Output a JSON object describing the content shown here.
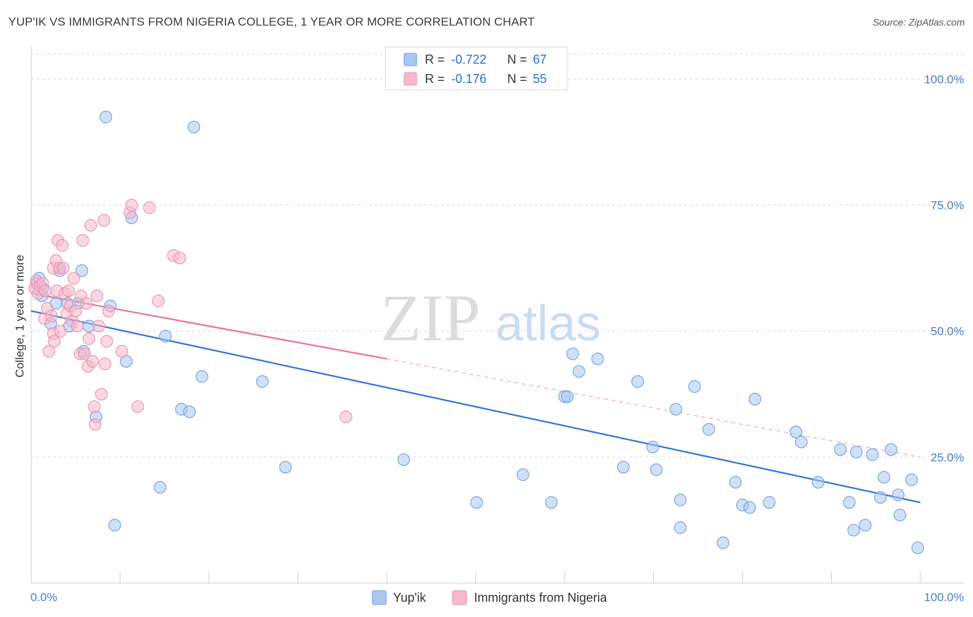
{
  "title": "YUP'IK VS IMMIGRANTS FROM NIGERIA COLLEGE, 1 YEAR OR MORE CORRELATION CHART",
  "source": "Source: ZipAtlas.com",
  "watermark": {
    "zip": "ZIP",
    "atlas": "atlas"
  },
  "colors": {
    "blue_fill": "#a9c8f0",
    "blue_stroke": "#6f9fe0",
    "blue_line": "#2f74d0",
    "pink_fill": "#f6b8cb",
    "pink_stroke": "#ec8fae",
    "pink_line": "#e8709a",
    "grid": "#d9d9d9",
    "axis_text": "#4a7cc4"
  },
  "legend": {
    "r_label": "R =",
    "n_label": "N =",
    "series": [
      {
        "name": "Yup'ik",
        "r": "-0.722",
        "n": "67"
      },
      {
        "name": "Immigrants from Nigeria",
        "r": "-0.176",
        "n": "55"
      }
    ]
  },
  "chart_data": {
    "type": "scatter",
    "title": "YUP'IK VS IMMIGRANTS FROM NIGERIA COLLEGE, 1 YEAR OR MORE CORRELATION CHART",
    "xlabel": "",
    "ylabel": "College, 1 year or more",
    "xlim": [
      0,
      100
    ],
    "ylim": [
      0,
      105
    ],
    "x_tick_labels": [
      "0.0%",
      "100.0%"
    ],
    "y_ticks": [
      25,
      50,
      75,
      100
    ],
    "y_tick_labels": [
      "25.0%",
      "50.0%",
      "75.0%",
      "100.0%"
    ],
    "grid": "horizontal dashed",
    "series": [
      {
        "name": "Yup'ik",
        "trend": {
          "x": [
            0,
            100
          ],
          "y": [
            54.0,
            16.0
          ],
          "solid_until": 100
        },
        "points": [
          [
            0.6,
            59.5
          ],
          [
            0.9,
            60.5
          ],
          [
            1.2,
            57.0
          ],
          [
            1.3,
            58.5
          ],
          [
            2.2,
            51.5
          ],
          [
            2.8,
            55.5
          ],
          [
            3.2,
            62.0
          ],
          [
            4.1,
            55.5
          ],
          [
            4.3,
            51.0
          ],
          [
            5.3,
            55.5
          ],
          [
            5.7,
            62.0
          ],
          [
            5.9,
            46.0
          ],
          [
            6.5,
            51.0
          ],
          [
            7.3,
            33.0
          ],
          [
            8.4,
            92.5
          ],
          [
            8.9,
            55.0
          ],
          [
            9.4,
            11.5
          ],
          [
            10.7,
            44.0
          ],
          [
            11.3,
            72.5
          ],
          [
            14.5,
            19.0
          ],
          [
            15.1,
            49.0
          ],
          [
            16.9,
            34.5
          ],
          [
            17.8,
            34.0
          ],
          [
            18.3,
            90.5
          ],
          [
            19.2,
            41.0
          ],
          [
            26.0,
            40.0
          ],
          [
            28.6,
            23.0
          ],
          [
            41.9,
            24.5
          ],
          [
            50.1,
            16.0
          ],
          [
            55.3,
            21.5
          ],
          [
            58.5,
            16.0
          ],
          [
            60.0,
            37.0
          ],
          [
            60.3,
            37.0
          ],
          [
            60.9,
            45.5
          ],
          [
            61.6,
            42.0
          ],
          [
            63.7,
            44.5
          ],
          [
            66.6,
            23.0
          ],
          [
            68.2,
            40.0
          ],
          [
            69.9,
            27.0
          ],
          [
            70.3,
            22.5
          ],
          [
            72.5,
            34.5
          ],
          [
            73.0,
            16.5
          ],
          [
            73.0,
            11.0
          ],
          [
            74.6,
            39.0
          ],
          [
            76.2,
            30.5
          ],
          [
            77.8,
            8.0
          ],
          [
            79.2,
            20.0
          ],
          [
            80.0,
            15.5
          ],
          [
            80.8,
            15.0
          ],
          [
            81.4,
            36.5
          ],
          [
            83.0,
            16.0
          ],
          [
            86.0,
            30.0
          ],
          [
            86.6,
            28.0
          ],
          [
            88.5,
            20.0
          ],
          [
            91.0,
            26.5
          ],
          [
            92.0,
            16.0
          ],
          [
            92.5,
            10.5
          ],
          [
            92.8,
            26.0
          ],
          [
            93.8,
            11.5
          ],
          [
            94.6,
            25.5
          ],
          [
            95.5,
            17.0
          ],
          [
            95.9,
            21.0
          ],
          [
            96.7,
            26.5
          ],
          [
            97.5,
            17.5
          ],
          [
            97.7,
            13.5
          ],
          [
            99.0,
            20.5
          ],
          [
            99.7,
            7.0
          ]
        ]
      },
      {
        "name": "Immigrants from Nigeria",
        "trend": {
          "x": [
            0,
            100
          ],
          "y": [
            57.5,
            25.0
          ],
          "solid_until": 40
        },
        "points": [
          [
            0.4,
            58.5
          ],
          [
            0.6,
            60.0
          ],
          [
            0.8,
            57.5
          ],
          [
            1.0,
            59.0
          ],
          [
            1.3,
            59.5
          ],
          [
            1.6,
            58.0
          ],
          [
            1.5,
            52.5
          ],
          [
            1.8,
            54.5
          ],
          [
            2.0,
            46.0
          ],
          [
            2.3,
            53.0
          ],
          [
            2.5,
            62.5
          ],
          [
            2.5,
            49.5
          ],
          [
            2.6,
            48.0
          ],
          [
            2.8,
            64.0
          ],
          [
            2.9,
            58.0
          ],
          [
            3.0,
            68.0
          ],
          [
            3.2,
            62.5
          ],
          [
            3.3,
            50.0
          ],
          [
            3.5,
            67.0
          ],
          [
            3.6,
            62.5
          ],
          [
            3.8,
            57.5
          ],
          [
            4.0,
            53.5
          ],
          [
            4.2,
            58.0
          ],
          [
            4.4,
            55.0
          ],
          [
            4.6,
            52.0
          ],
          [
            4.8,
            60.5
          ],
          [
            5.0,
            54.0
          ],
          [
            5.2,
            51.0
          ],
          [
            5.5,
            45.5
          ],
          [
            5.6,
            57.0
          ],
          [
            5.8,
            68.0
          ],
          [
            6.0,
            45.5
          ],
          [
            6.2,
            55.5
          ],
          [
            6.4,
            43.0
          ],
          [
            6.5,
            48.5
          ],
          [
            6.7,
            71.0
          ],
          [
            6.9,
            44.0
          ],
          [
            7.1,
            35.0
          ],
          [
            7.2,
            31.5
          ],
          [
            7.4,
            57.0
          ],
          [
            7.6,
            51.0
          ],
          [
            7.9,
            37.5
          ],
          [
            8.2,
            72.0
          ],
          [
            8.3,
            43.5
          ],
          [
            8.5,
            48.0
          ],
          [
            8.7,
            54.0
          ],
          [
            10.2,
            46.0
          ],
          [
            11.1,
            73.5
          ],
          [
            11.3,
            75.0
          ],
          [
            12.0,
            35.0
          ],
          [
            13.3,
            74.5
          ],
          [
            14.3,
            56.0
          ],
          [
            16.0,
            65.0
          ],
          [
            16.7,
            64.5
          ],
          [
            35.4,
            33.0
          ]
        ]
      }
    ]
  }
}
